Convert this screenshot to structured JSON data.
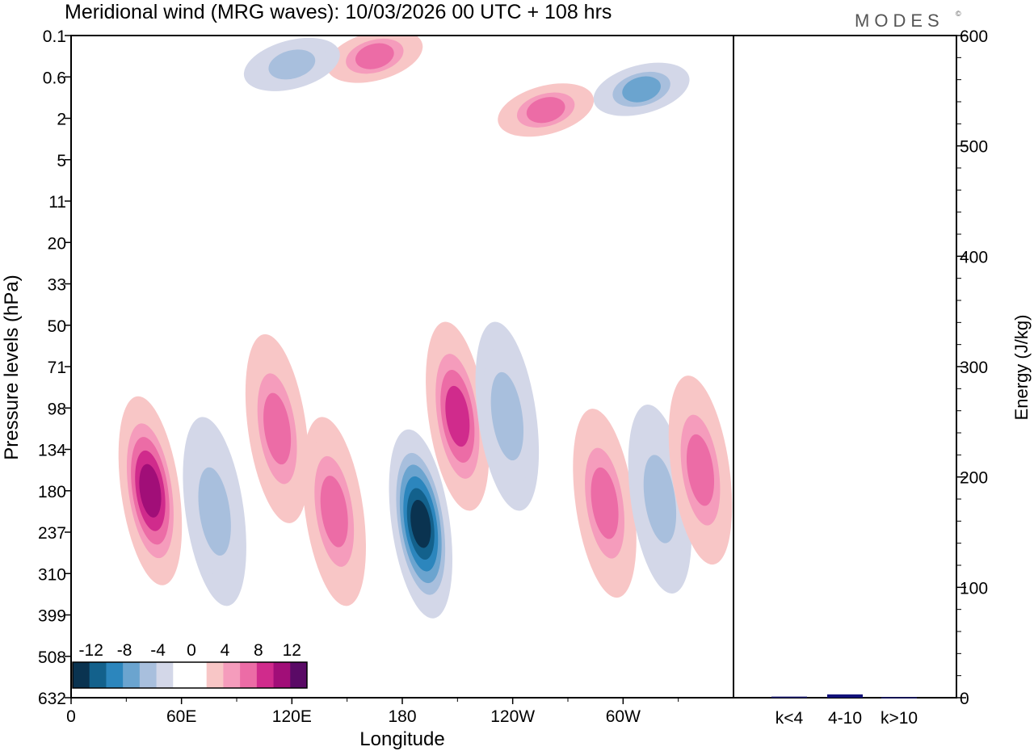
{
  "header": {
    "title": "Meridional wind (MRG waves):  10/03/2026  00 UTC  + 108 hrs",
    "logo": "MODES",
    "logo_mark": "©"
  },
  "chart_data": [
    {
      "type": "heatmap",
      "name": "hovmoller-longitude-pressure",
      "title": "Meridional wind (MRG waves):  10/03/2026  00 UTC  + 108 hrs",
      "xlabel": "Longitude",
      "ylabel": "Pressure levels (hPa)",
      "x_ticks": [
        "0",
        "60E",
        "120E",
        "180",
        "120W",
        "60W"
      ],
      "x_tick_values": [
        0,
        60,
        120,
        180,
        240,
        300
      ],
      "xlim": [
        0,
        360
      ],
      "y_ticks": [
        "0.1",
        "0.6",
        "2",
        "5",
        "11",
        "20",
        "33",
        "50",
        "71",
        "98",
        "134",
        "180",
        "237",
        "310",
        "399",
        "508",
        "632"
      ],
      "colorbar": {
        "labels": [
          "-12",
          "-8",
          "-4",
          "0",
          "4",
          "8",
          "12"
        ],
        "colors": [
          "#0a3350",
          "#13618c",
          "#2c86bd",
          "#6ba4cf",
          "#a8bfdd",
          "#d3d7e8",
          "#ffffff",
          "#ffffff",
          "#f8c6c6",
          "#f59cbc",
          "#ec6ca6",
          "#d02b8c",
          "#a10e78",
          "#5a0a66"
        ]
      },
      "features": [
        {
          "lon": 43,
          "level_index": 11,
          "value": 12,
          "sign": "positive"
        },
        {
          "lon": 78,
          "level_index": 11.5,
          "value": -6,
          "sign": "negative"
        },
        {
          "lon": 112,
          "level_index": 9.5,
          "value": 8,
          "sign": "positive"
        },
        {
          "lon": 143,
          "level_index": 11.5,
          "value": 8,
          "sign": "positive"
        },
        {
          "lon": 190,
          "level_index": 11.8,
          "value": -14,
          "sign": "negative"
        },
        {
          "lon": 210,
          "level_index": 9.2,
          "value": 10,
          "sign": "positive"
        },
        {
          "lon": 237,
          "level_index": 9.2,
          "value": -6,
          "sign": "negative"
        },
        {
          "lon": 290,
          "level_index": 11.3,
          "value": 8,
          "sign": "positive"
        },
        {
          "lon": 320,
          "level_index": 11.2,
          "value": -6,
          "sign": "negative"
        },
        {
          "lon": 342,
          "level_index": 10.5,
          "value": 8,
          "sign": "positive"
        },
        {
          "lon": 165,
          "level_index": 0.5,
          "value": 8,
          "sign": "positive"
        },
        {
          "lon": 120,
          "level_index": 0.7,
          "value": -6,
          "sign": "negative"
        },
        {
          "lon": 310,
          "level_index": 1.3,
          "value": -8,
          "sign": "negative"
        },
        {
          "lon": 258,
          "level_index": 1.8,
          "value": 8,
          "sign": "positive"
        }
      ]
    },
    {
      "type": "bar",
      "name": "energy-bars",
      "ylabel": "Energy (J/kg)",
      "ylim": [
        0,
        600
      ],
      "y_ticks": [
        "0",
        "100",
        "200",
        "300",
        "400",
        "500",
        "600"
      ],
      "categories": [
        "k<4",
        "4-10",
        "k>10"
      ],
      "values": [
        1,
        3,
        0.5
      ],
      "colors": [
        "#1a1a6e",
        "#12127a",
        "#1a1a6e"
      ]
    }
  ]
}
